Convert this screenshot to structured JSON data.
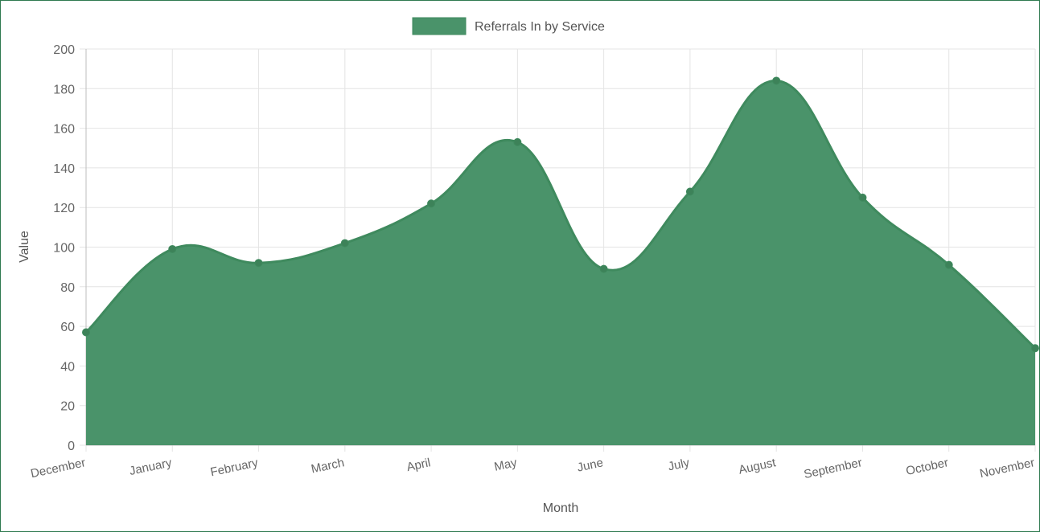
{
  "chart_data": {
    "type": "area",
    "categories": [
      "December",
      "January",
      "February",
      "March",
      "April",
      "May",
      "June",
      "July",
      "August",
      "September",
      "October",
      "November"
    ],
    "series": [
      {
        "name": "Referrals In by Service",
        "values": [
          57,
          99,
          92,
          102,
          122,
          153,
          89,
          128,
          184,
          125,
          91,
          49
        ]
      }
    ],
    "xlabel": "Month",
    "ylabel": "Value",
    "ylim": [
      0,
      200
    ],
    "yticks": [
      0,
      20,
      40,
      60,
      80,
      100,
      120,
      140,
      160,
      180,
      200
    ],
    "grid": true,
    "legend": "top-center",
    "colors": {
      "fill": "#4a936a",
      "stroke": "#3f8a5e",
      "point": "#3d8259"
    }
  }
}
